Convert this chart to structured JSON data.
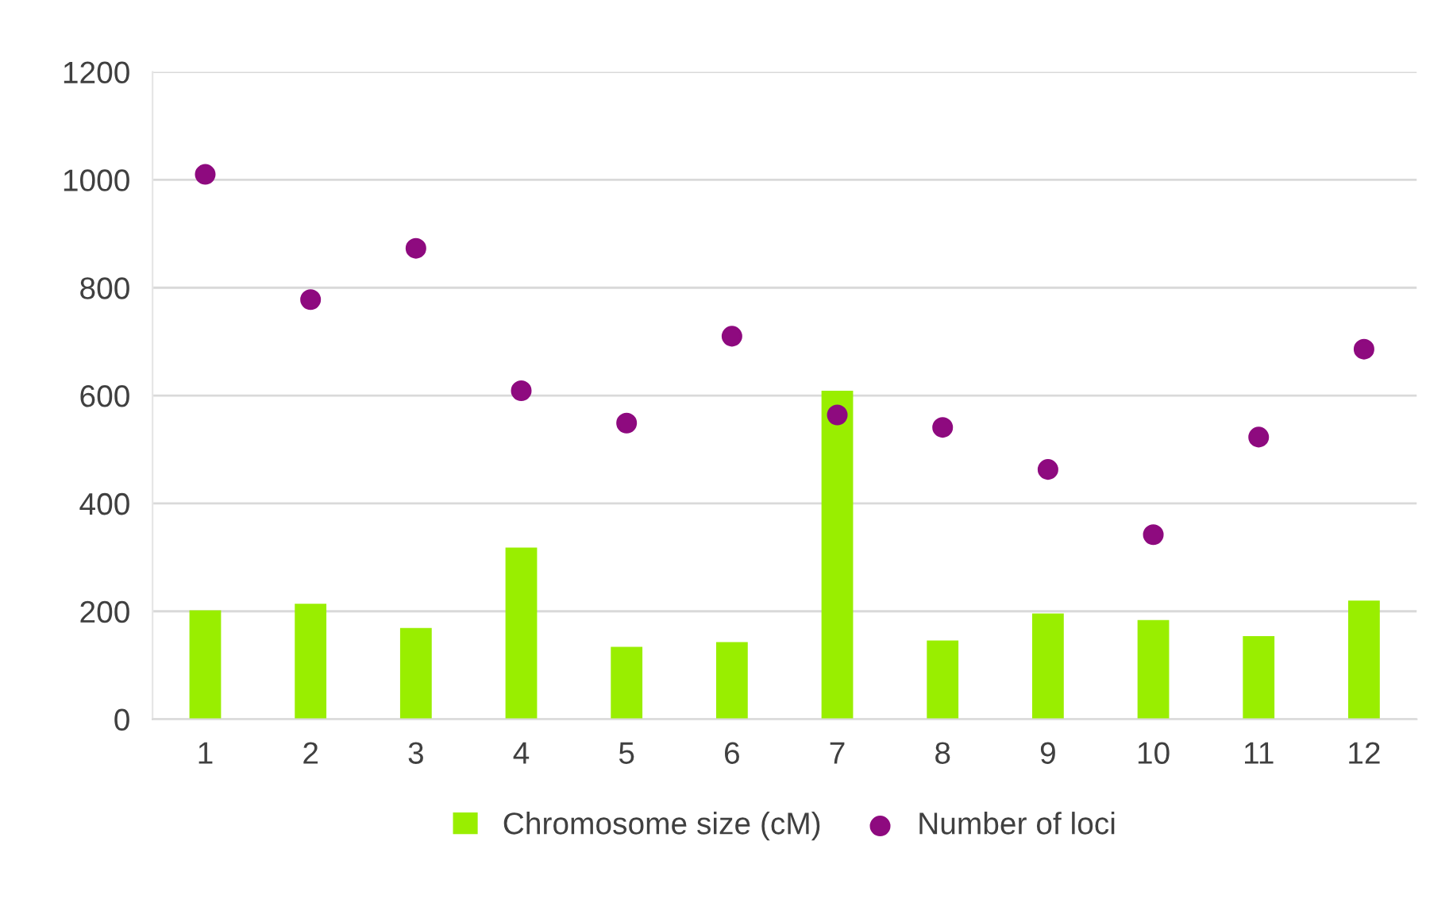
{
  "chart_data": {
    "type": "bar",
    "categories": [
      "1",
      "2",
      "3",
      "4",
      "5",
      "6",
      "7",
      "8",
      "9",
      "10",
      "11",
      "12"
    ],
    "series": [
      {
        "name": "Chromosome size (cM)",
        "color": "#99ee00",
        "values": [
          202,
          214,
          169,
          318,
          134,
          143,
          609,
          146,
          196,
          184,
          154,
          220
        ]
      },
      {
        "name": "Number of loci",
        "type": "scatter",
        "color": "#8e0a7f",
        "values": [
          1010,
          778,
          873,
          609,
          549,
          710,
          564,
          541,
          463,
          342,
          523,
          686
        ]
      }
    ],
    "ylim": [
      0,
      1200
    ],
    "yticks": [
      0,
      200,
      400,
      600,
      800,
      1000,
      1200
    ],
    "grid": "y",
    "legend": "bottom",
    "marker": "circle"
  }
}
